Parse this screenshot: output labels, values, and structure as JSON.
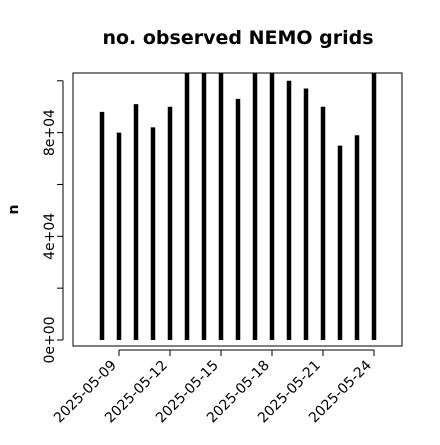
{
  "chart_data": {
    "type": "bar",
    "title": "no. observed NEMO grids",
    "ylabel": "n",
    "xlabel": "",
    "ylim": [
      0,
      103000
    ],
    "grid": false,
    "x": [
      "2025-05-08",
      "2025-05-09",
      "2025-05-10",
      "2025-05-11",
      "2025-05-12",
      "2025-05-13",
      "2025-05-14",
      "2025-05-15",
      "2025-05-16",
      "2025-05-17",
      "2025-05-18",
      "2025-05-19",
      "2025-05-20",
      "2025-05-21",
      "2025-05-22",
      "2025-05-23",
      "2025-05-24"
    ],
    "values": [
      88000,
      80000,
      91000,
      82000,
      90000,
      103000,
      103000,
      103000,
      93000,
      103000,
      103000,
      100000,
      97000,
      90000,
      75000,
      79000,
      103000
    ],
    "x_ticks": [
      "2025-05-09",
      "2025-05-12",
      "2025-05-15",
      "2025-05-18",
      "2025-05-21",
      "2025-05-24"
    ],
    "y_ticks": [
      {
        "value": 0,
        "label": "0e+00"
      },
      {
        "value": 40000,
        "label": "4e+04"
      },
      {
        "value": 80000,
        "label": "8e+04"
      }
    ],
    "y_minor_ticks": [
      20000,
      60000,
      100000
    ]
  }
}
